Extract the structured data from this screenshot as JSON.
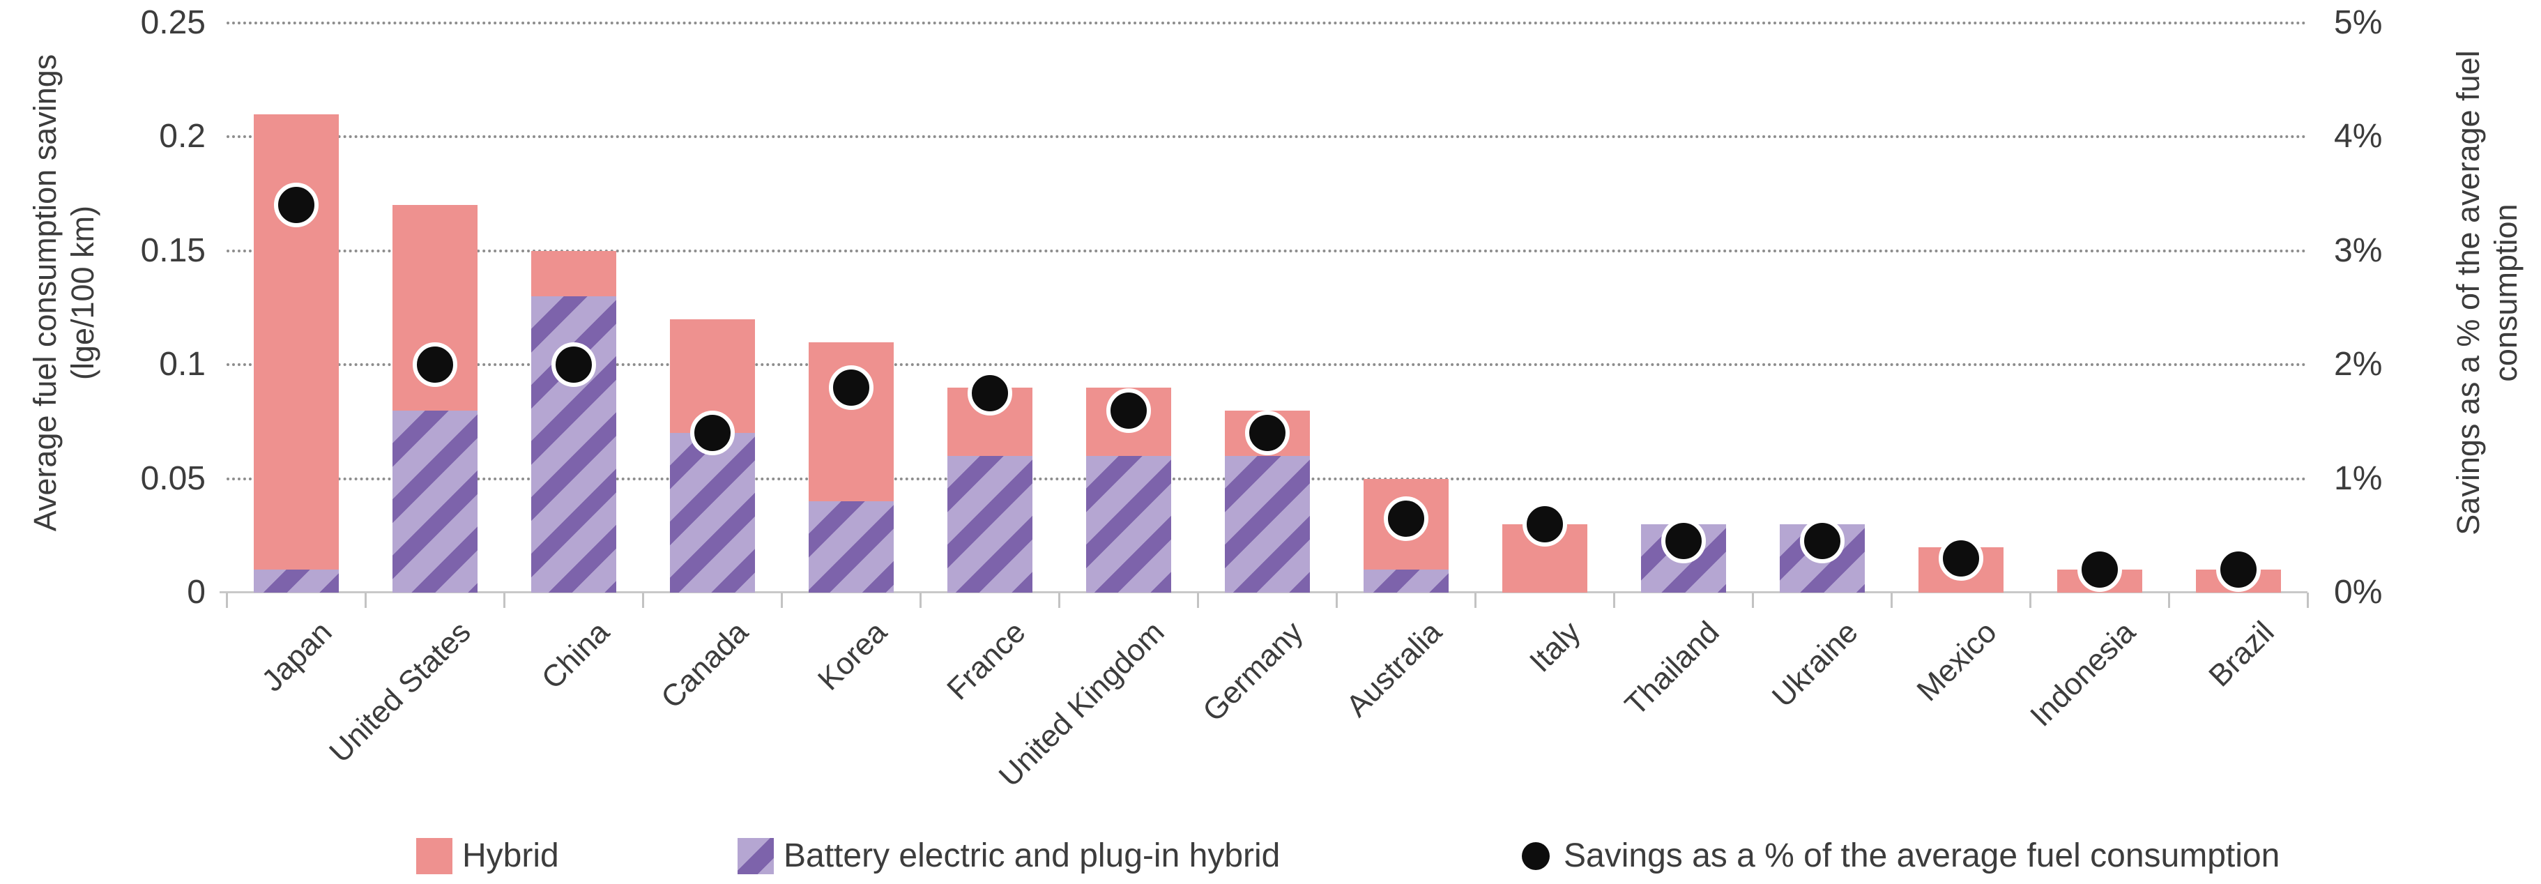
{
  "chart_data": {
    "type": "bar",
    "subtype": "stacked-bar-with-secondary-axis-dots",
    "categories": [
      "Japan",
      "United States",
      "China",
      "Canada",
      "Korea",
      "France",
      "United Kingdom",
      "Germany",
      "Australia",
      "Italy",
      "Thailand",
      "Ukraine",
      "Mexico",
      "Indonesia",
      "Brazil"
    ],
    "series": [
      {
        "name": "Hybrid",
        "type": "bar",
        "axis": "left",
        "color": "#ee918f",
        "values": [
          0.2,
          0.09,
          0.02,
          0.05,
          0.07,
          0.03,
          0.03,
          0.02,
          0.04,
          0.03,
          0.0,
          0.0,
          0.02,
          0.01,
          0.01
        ]
      },
      {
        "name": "Battery electric and plug-in hybrid",
        "type": "bar",
        "axis": "left",
        "pattern": "diagonal-stripes",
        "color_light": "#b5a6d2",
        "color_dark": "#7d63ab",
        "values": [
          0.01,
          0.08,
          0.13,
          0.07,
          0.04,
          0.06,
          0.06,
          0.06,
          0.01,
          0.0,
          0.03,
          0.03,
          0.0,
          0.0,
          0.0
        ]
      },
      {
        "name": "Savings as a % of the average fuel consumption",
        "type": "scatter",
        "axis": "right",
        "color": "#0d0d0d",
        "values": [
          3.4,
          2.0,
          2.0,
          1.4,
          1.8,
          1.75,
          1.6,
          1.4,
          0.65,
          0.6,
          0.45,
          0.45,
          0.3,
          0.2,
          0.2
        ]
      }
    ],
    "stack_totals": [
      0.21,
      0.17,
      0.15,
      0.12,
      0.11,
      0.09,
      0.09,
      0.08,
      0.05,
      0.03,
      0.03,
      0.03,
      0.02,
      0.01,
      0.01
    ],
    "left_axis": {
      "label_line1": "Average fuel consumption savings",
      "label_line2": "(lge/100 km)",
      "min": 0,
      "max": 0.25,
      "tick_step": 0.05,
      "ticks": [
        "0",
        "0.05",
        "0.1",
        "0.15",
        "0.2",
        "0.25"
      ]
    },
    "right_axis": {
      "label_line1": "Savings as a % of the average fuel",
      "label_line2": "consumption",
      "min": 0,
      "max": 5,
      "tick_step": 1,
      "ticks": [
        "0%",
        "1%",
        "2%",
        "3%",
        "4%",
        "5%"
      ]
    },
    "grid": "dotted-horizontal",
    "legend_position": "bottom"
  },
  "legend": {
    "items": [
      {
        "label": "Hybrid",
        "swatch": "pink-square"
      },
      {
        "label": "Battery electric and plug-in hybrid",
        "swatch": "purple-striped-square"
      },
      {
        "label": "Savings as a % of the average fuel consumption",
        "swatch": "black-dot"
      }
    ]
  },
  "colors": {
    "hybrid_pink": "#ee918f",
    "bev_light_purple": "#b5a6d2",
    "bev_dark_purple": "#7d63ab",
    "dot_black": "#0d0d0d",
    "gridline_gray": "#8d8d8d",
    "axis_gray": "#c9c9c9",
    "text_gray": "#3c3c3c"
  }
}
